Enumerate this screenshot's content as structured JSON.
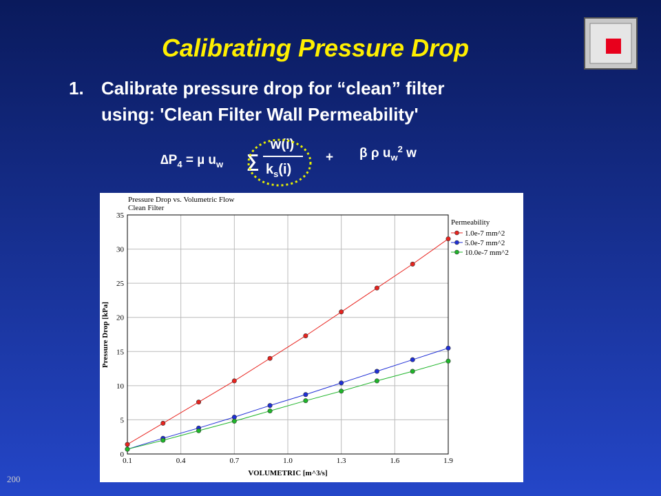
{
  "slide": {
    "title": "Calibrating Pressure Drop",
    "item_number": "1.",
    "item_lines": [
      "Calibrate pressure drop  for “clean” filter",
      "using: 'Clean Filter Wall Permeability'"
    ],
    "formula": {
      "lhs": "∆P",
      "lhs_sub": "4",
      "eq": " = µ u",
      "eq_sub": "w",
      "sum": "∑",
      "numerator": "w(i)",
      "den_k": "k",
      "den_sub": "s",
      "den_rest": "(i)",
      "plus": "+",
      "rhs": "β ρ u",
      "rhs_sub": "w",
      "rhs_sup": "2",
      "rhs_end": " w"
    },
    "page_number": "200"
  },
  "chart_data": {
    "type": "line",
    "title": "Pressure Drop vs. Volumetric Flow",
    "subtitle": "Clean Filter",
    "x_label": "VOLUMETRIC [m^3/s]",
    "y_label": "Pressure Drop [kPa]",
    "legend_title": "Permeability",
    "legend": "right",
    "x": [
      0.1,
      0.3,
      0.5,
      0.7,
      0.9,
      1.1,
      1.3,
      1.5,
      1.7,
      1.9
    ],
    "series": [
      {
        "name": "1.0e-7 mm^2",
        "color": "#e8231e",
        "values": [
          1.4,
          4.5,
          7.6,
          10.7,
          14.0,
          17.3,
          20.8,
          24.3,
          27.8,
          31.5
        ]
      },
      {
        "name": "5.0e-7 mm^2",
        "color": "#1f2fd6",
        "values": [
          0.7,
          2.3,
          3.8,
          5.4,
          7.1,
          8.7,
          10.4,
          12.1,
          13.8,
          15.5
        ]
      },
      {
        "name": "10.0e-7 mm^2",
        "color": "#1fb52a",
        "values": [
          0.7,
          2.0,
          3.4,
          4.8,
          6.3,
          7.8,
          9.2,
          10.7,
          12.1,
          13.6
        ]
      }
    ],
    "xlim": [
      0.1,
      1.9
    ],
    "xticks": [
      0.1,
      0.4,
      0.7,
      {
        "value": 1,
        "label": "1.0"
      },
      1.3,
      1.6,
      1.9
    ],
    "ylim": [
      0,
      35
    ],
    "yticks": [
      0,
      5,
      10,
      15,
      20,
      25,
      30,
      35
    ],
    "grid": true
  }
}
